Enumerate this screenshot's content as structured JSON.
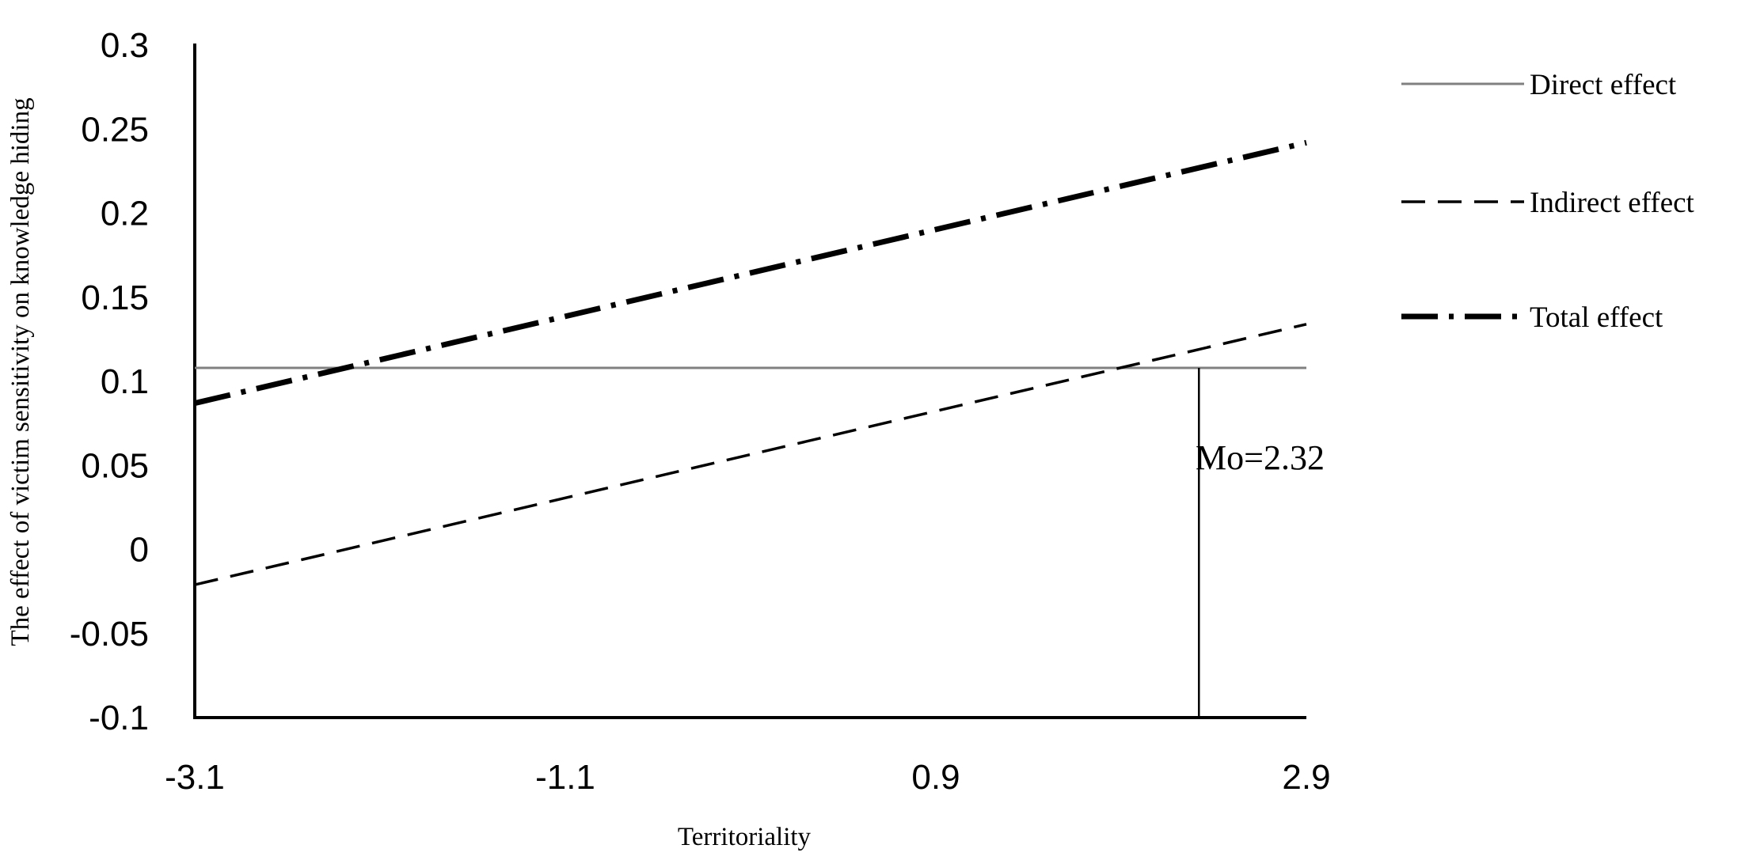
{
  "chart_data": {
    "type": "line",
    "title": "",
    "xlabel": "Territoriality",
    "ylabel": "The effect of victim sensitivity on knowledge hiding",
    "xlim": [
      -3.1,
      2.9
    ],
    "ylim": [
      -0.1,
      0.3
    ],
    "x_ticks": [
      -3.1,
      -1.1,
      0.9,
      2.9
    ],
    "x_tick_labels": [
      "-3.1",
      "-1.1",
      "0.9",
      "2.9"
    ],
    "y_ticks": [
      -0.1,
      -0.05,
      0,
      0.05,
      0.1,
      0.15,
      0.2,
      0.25,
      0.3
    ],
    "y_tick_labels": [
      "-0.1",
      "-0.05",
      "0",
      "0.05",
      "0.1",
      "0.15",
      "0.2",
      "0.25",
      "0.3"
    ],
    "grid": false,
    "legend_position": "top-right",
    "series": [
      {
        "name": "Direct effect",
        "x": [
          -3.1,
          2.9
        ],
        "y": [
          0.108,
          0.108
        ],
        "color": "#808080",
        "style": "solid"
      },
      {
        "name": "Indirect effect",
        "x": [
          -3.1,
          2.9
        ],
        "y": [
          -0.021,
          0.134
        ],
        "color": "#000000",
        "style": "dashed"
      },
      {
        "name": "Total effect",
        "x": [
          -3.1,
          2.9
        ],
        "y": [
          0.087,
          0.242
        ],
        "color": "#000000",
        "style": "dash-dot"
      }
    ],
    "annotations": [
      {
        "text": "Mo=2.32",
        "x": 2.32,
        "y": 0.108
      }
    ]
  }
}
